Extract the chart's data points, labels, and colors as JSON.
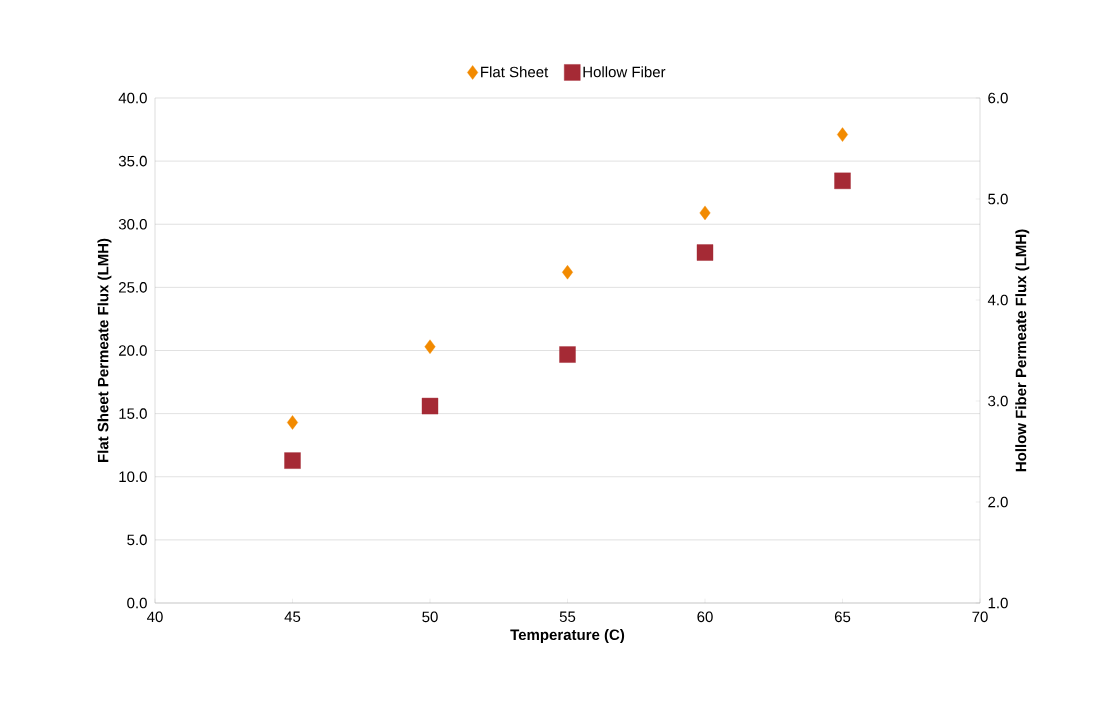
{
  "chart_data": {
    "type": "scatter",
    "xlabel": "Temperature (C)",
    "ylabel": "Flat Sheet Permeate Flux (LMH)",
    "y2label": "Hollow Fiber Permeate Flux (LMH)",
    "x": [
      45,
      50,
      55,
      60,
      65
    ],
    "series": [
      {
        "name": "Flat Sheet",
        "color": "#f28a00",
        "marker": "diamond",
        "values": [
          14.3,
          20.3,
          26.2,
          30.9,
          37.1
        ]
      },
      {
        "name": "Hollow Fiber",
        "color": "#a52a35",
        "marker": "square",
        "axis": "y2",
        "values": [
          2.41,
          2.95,
          3.46,
          4.47,
          5.18
        ]
      }
    ],
    "xlim": [
      40,
      70
    ],
    "xticks": [
      40,
      45,
      50,
      55,
      60,
      65,
      70
    ],
    "ylim": [
      0,
      40
    ],
    "yticks": [
      {
        "value": 0,
        "label": "0.0"
      },
      {
        "value": 5,
        "label": "5.0"
      },
      {
        "value": 10,
        "label": "10.0"
      },
      {
        "value": 15,
        "label": "15.0"
      },
      {
        "value": 20,
        "label": "20.0"
      },
      {
        "value": 25,
        "label": "25.0"
      },
      {
        "value": 30,
        "label": "30.0"
      },
      {
        "value": 35,
        "label": "35.0"
      },
      {
        "value": 40,
        "label": "40.0"
      }
    ],
    "y2lim": [
      1,
      6
    ],
    "y2ticks": [
      {
        "value": 1,
        "label": "1.0"
      },
      {
        "value": 2,
        "label": "2.0"
      },
      {
        "value": 3,
        "label": "3.0"
      },
      {
        "value": 4,
        "label": "4.0"
      },
      {
        "value": 5,
        "label": "5.0"
      },
      {
        "value": 6,
        "label": "6.0"
      }
    ],
    "grid": "y",
    "legend": "top"
  }
}
